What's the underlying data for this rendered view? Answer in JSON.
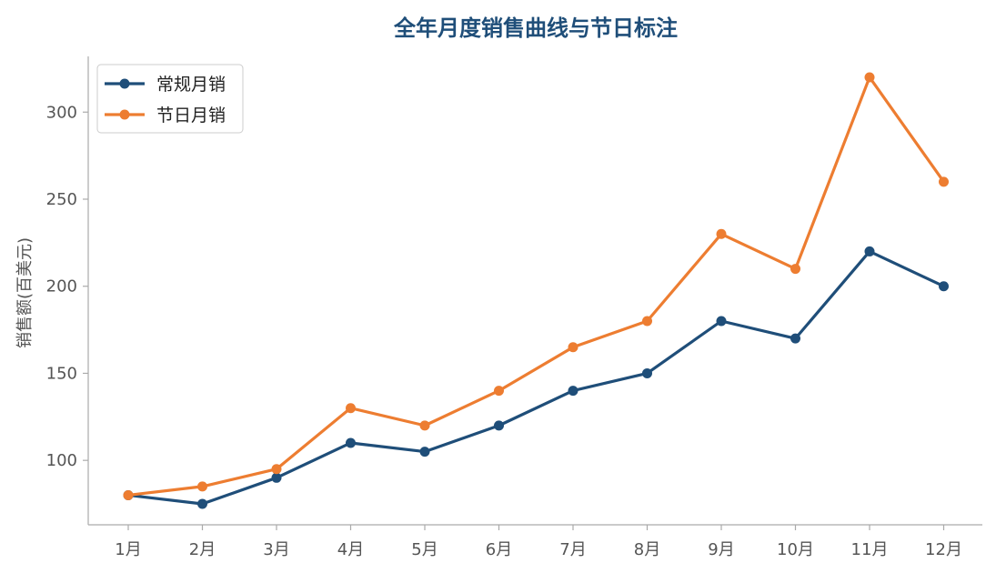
{
  "chart_data": {
    "type": "line",
    "title": "全年月度销售曲线与节日标注",
    "xlabel": "",
    "ylabel": "销售额(百美元)",
    "categories": [
      "1月",
      "2月",
      "3月",
      "4月",
      "5月",
      "6月",
      "7月",
      "8月",
      "9月",
      "10月",
      "11月",
      "12月"
    ],
    "series": [
      {
        "name": "常规月销",
        "color": "#1f4e79",
        "values": [
          80,
          75,
          90,
          110,
          105,
          120,
          140,
          150,
          180,
          170,
          220,
          200
        ]
      },
      {
        "name": "节日月销",
        "color": "#ed7d31",
        "values": [
          80,
          85,
          95,
          130,
          120,
          140,
          165,
          180,
          230,
          210,
          320,
          260
        ]
      }
    ],
    "ylim": [
      63,
      332
    ],
    "yticks": [
      100,
      150,
      200,
      250,
      300
    ],
    "grid": false,
    "legend": "top-left"
  }
}
